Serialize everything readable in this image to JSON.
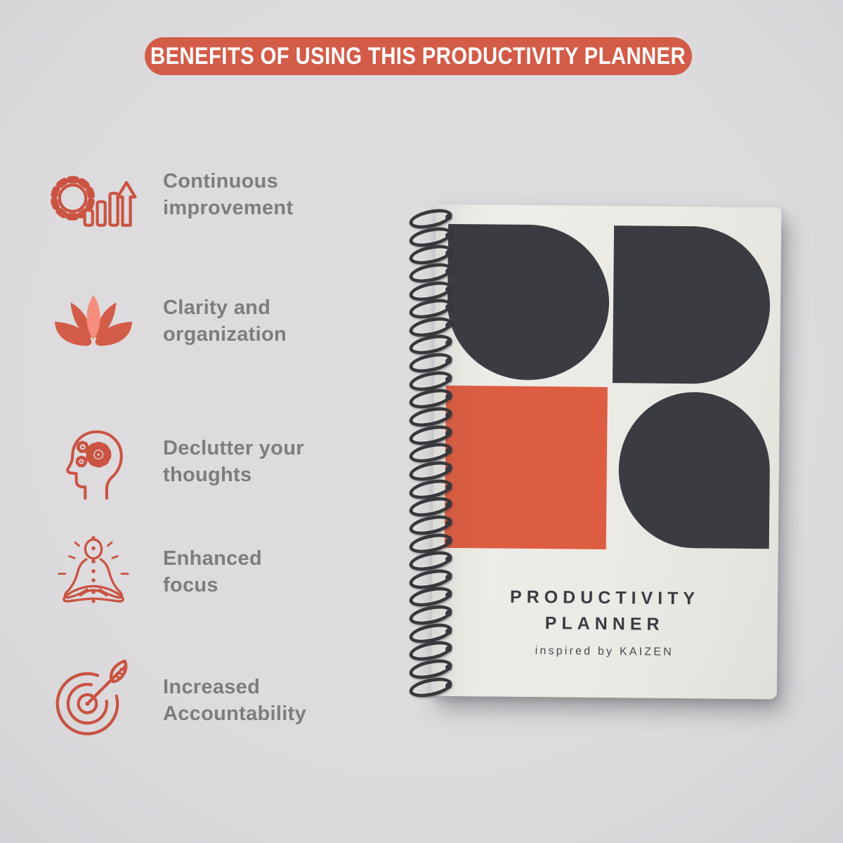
{
  "banner": {
    "text": "BENEFITS OF USING THIS PRODUCTIVITY PLANNER"
  },
  "benefits": [
    {
      "icon": "gear-growth-chart-icon",
      "line1": "Continuous",
      "line2": "improvement"
    },
    {
      "icon": "lotus-flower-icon",
      "line1": "Clarity and",
      "line2": "organization"
    },
    {
      "icon": "mind-gears-icon",
      "line1": "Declutter your",
      "line2": "thoughts"
    },
    {
      "icon": "meditation-pose-icon",
      "line1": "Enhanced",
      "line2": "focus"
    },
    {
      "icon": "target-arrow-icon",
      "line1": "Increased",
      "line2": "Accountability"
    }
  ],
  "notebook": {
    "title_line1": "PRODUCTIVITY",
    "title_line2": "PLANNER",
    "subtitle": "inspired by KAIZEN",
    "coil_count": 27
  },
  "colors": {
    "bg": "#d9d7da",
    "accent": "#ce4a33",
    "accent_bright": "#d94b2d",
    "icon_stroke": "#c5402c",
    "lotus_light": "#f4816d",
    "text_gray": "#6f6e70",
    "banner_text": "#ffffff",
    "cover": "#eae8e2",
    "shape_dark": "#24262c",
    "wire": "#232327"
  }
}
